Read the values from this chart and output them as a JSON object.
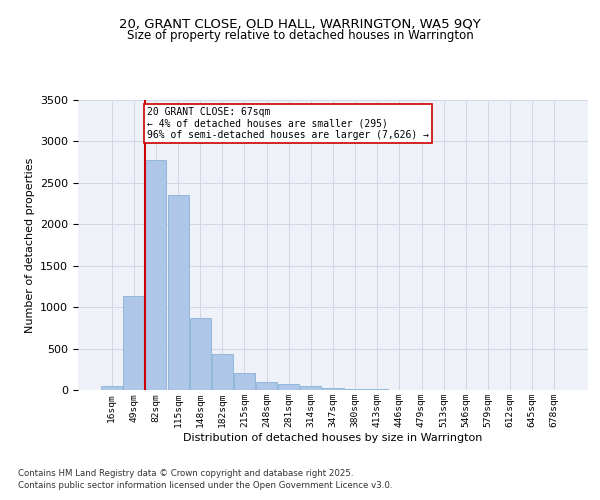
{
  "title1": "20, GRANT CLOSE, OLD HALL, WARRINGTON, WA5 9QY",
  "title2": "Size of property relative to detached houses in Warrington",
  "xlabel": "Distribution of detached houses by size in Warrington",
  "ylabel": "Number of detached properties",
  "categories": [
    "16sqm",
    "49sqm",
    "82sqm",
    "115sqm",
    "148sqm",
    "182sqm",
    "215sqm",
    "248sqm",
    "281sqm",
    "314sqm",
    "347sqm",
    "380sqm",
    "413sqm",
    "446sqm",
    "479sqm",
    "513sqm",
    "546sqm",
    "579sqm",
    "612sqm",
    "645sqm",
    "678sqm"
  ],
  "values": [
    50,
    1130,
    2780,
    2350,
    870,
    440,
    200,
    100,
    70,
    50,
    30,
    15,
    10,
    5,
    2,
    1,
    1,
    0,
    0,
    0,
    0
  ],
  "bar_color": "#aec6e8",
  "bar_edge_color": "#7aaad0",
  "grid_color": "#d0d8e8",
  "bg_color": "#eef2f8",
  "vline_x": 1.5,
  "vline_color": "#cc0000",
  "annotation_text": "20 GRANT CLOSE: 67sqm\n← 4% of detached houses are smaller (295)\n96% of semi-detached houses are larger (7,626) →",
  "annotation_box_color": "#ffffff",
  "annotation_box_edge": "#cc0000",
  "footer1": "Contains HM Land Registry data © Crown copyright and database right 2025.",
  "footer2": "Contains public sector information licensed under the Open Government Licence v3.0.",
  "ylim": [
    0,
    3500
  ],
  "title1_fontsize": 9.5,
  "title2_fontsize": 8.5
}
